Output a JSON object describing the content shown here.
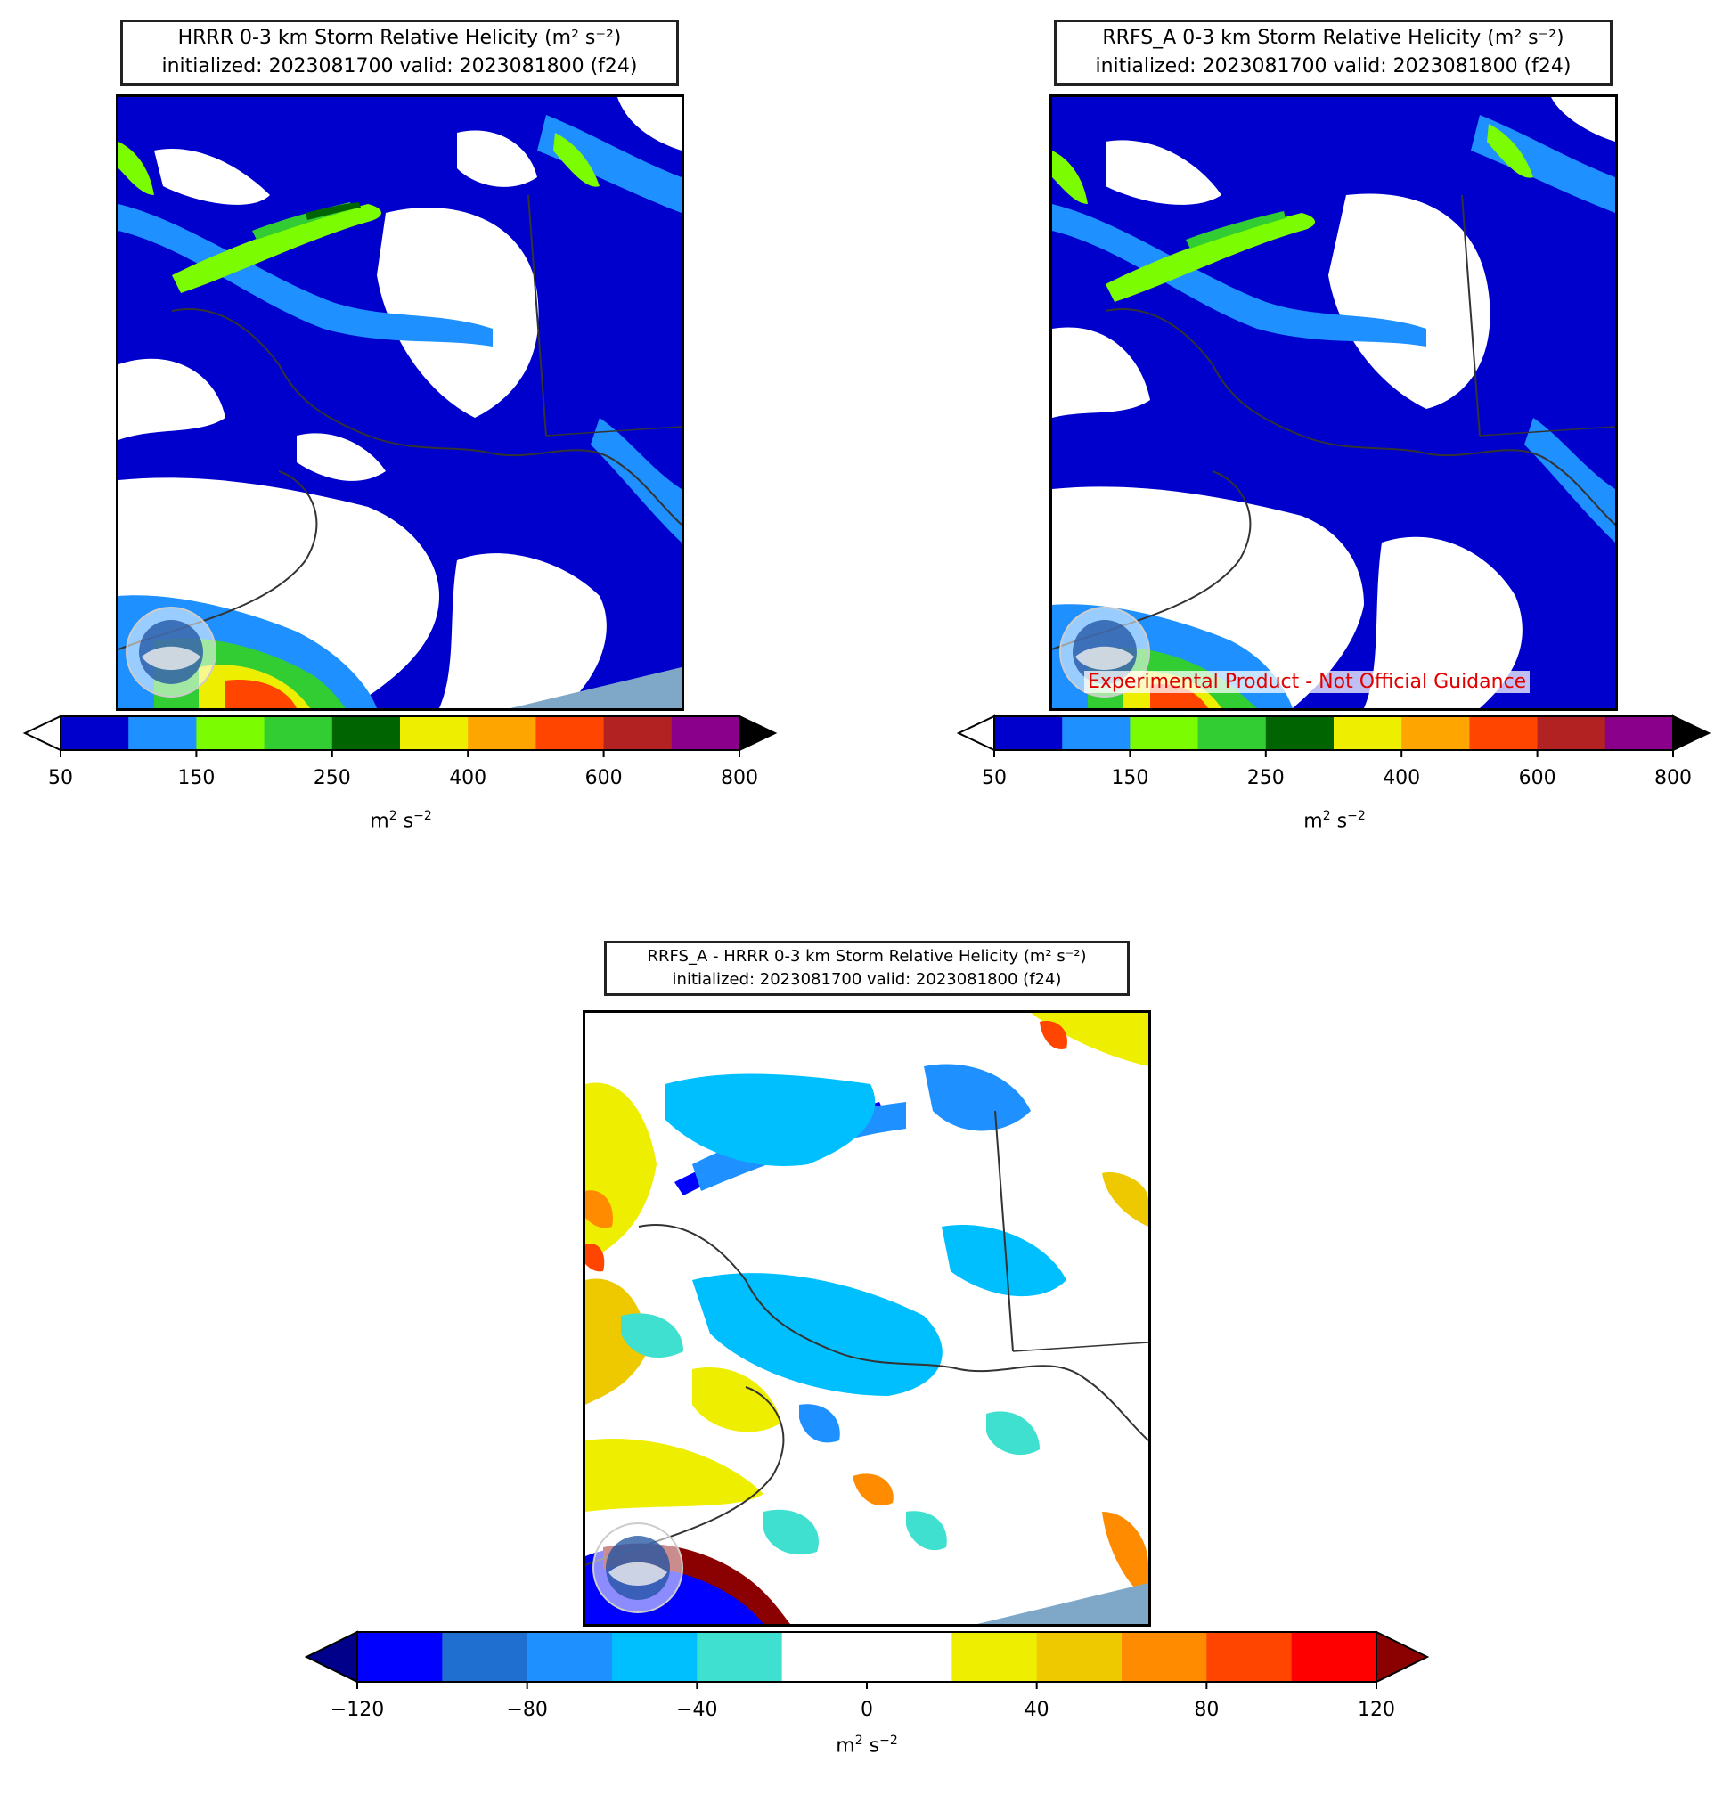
{
  "panels": {
    "hrrr": {
      "title_line1": "HRRR 0-3 km Storm Relative Helicity (m² s⁻²)",
      "title_line2": "initialized: 2023081700 valid: 2023081800 (f24)"
    },
    "rrfs": {
      "title_line1": "RRFS_A 0-3 km Storm Relative Helicity (m² s⁻²)",
      "title_line2": "initialized: 2023081700 valid: 2023081800 (f24)",
      "watermark": "Experimental Product - Not Official Guidance"
    },
    "diff": {
      "title_line1": "RRFS_A - HRRR 0-3 km Storm Relative Helicity (m² s⁻²)",
      "title_line2": "initialized: 2023081700 valid: 2023081800 (f24)"
    }
  },
  "colorbar_helicity": {
    "ticks": [
      "50",
      "150",
      "250",
      "400",
      "600",
      "800"
    ],
    "unit_base": "m",
    "unit_exp1": "2",
    "unit_mid": " s",
    "unit_exp2": "−2",
    "colors": [
      "#0000cd",
      "#1e90ff",
      "#7cfc00",
      "#32cd32",
      "#006400",
      "#eeee00",
      "#ffa500",
      "#ff4500",
      "#b22222",
      "#8b008b"
    ],
    "under_color": "#ffffff",
    "over_color": "#000000"
  },
  "colorbar_diff": {
    "ticks": [
      "−120",
      "−80",
      "−40",
      "0",
      "40",
      "80",
      "120"
    ],
    "unit_base": "m",
    "unit_exp1": "2",
    "unit_mid": " s",
    "unit_exp2": "−2",
    "colors": [
      "#0000ff",
      "#1e6fd0",
      "#1e90ff",
      "#00bfff",
      "#40e0d0",
      "#ffffff",
      "#ffffff",
      "#eeee00",
      "#eec900",
      "#ff8c00",
      "#ff4500",
      "#ff0000"
    ],
    "under_color": "#00008b",
    "over_color": "#8b0000"
  },
  "logo": {
    "text": "NOAA"
  }
}
